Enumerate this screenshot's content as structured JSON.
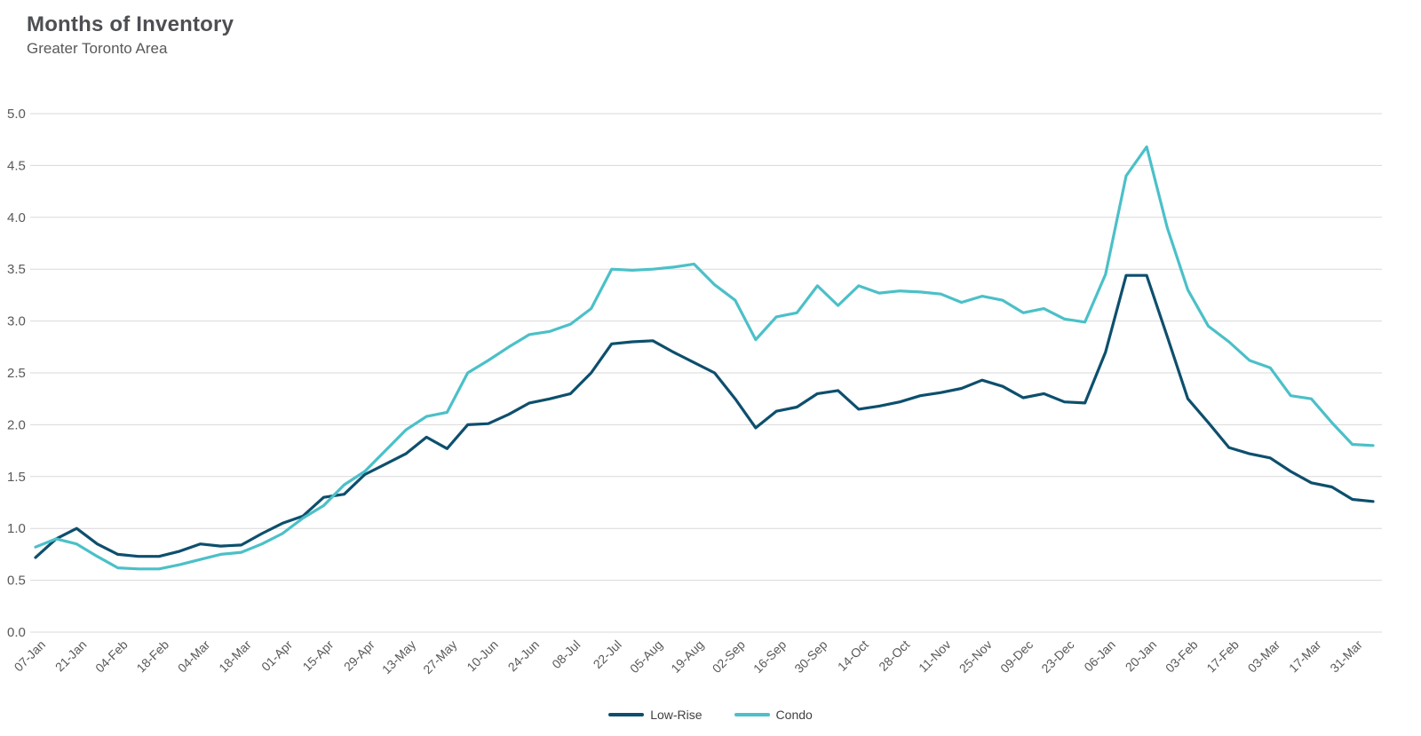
{
  "header": {
    "title": "Months of Inventory",
    "subtitle": "Greater Toronto Area"
  },
  "chart_data": {
    "type": "line",
    "title": "Months of Inventory",
    "subtitle": "Greater Toronto Area",
    "grid": "horizontal",
    "legend_position": "bottom-center",
    "ylim": [
      0,
      5
    ],
    "ytick_step": 0.5,
    "y_tick_labels": [
      "0.0",
      "0.5",
      "1.0",
      "1.5",
      "2.0",
      "2.5",
      "3.0",
      "3.5",
      "4.0",
      "4.5",
      "5.0"
    ],
    "label_every": 2,
    "x_labels": [
      "07-Jan",
      "21-Jan",
      "04-Feb",
      "18-Feb",
      "04-Mar",
      "18-Mar",
      "01-Apr",
      "15-Apr",
      "29-Apr",
      "13-May",
      "27-May",
      "10-Jun",
      "24-Jun",
      "08-Jul",
      "22-Jul",
      "05-Aug",
      "19-Aug",
      "02-Sep",
      "16-Sep",
      "30-Sep",
      "14-Oct",
      "28-Oct",
      "11-Nov",
      "25-Nov",
      "09-Dec",
      "23-Dec",
      "06-Jan",
      "20-Jan",
      "03-Feb",
      "17-Feb",
      "03-Mar",
      "17-Mar",
      "31-Mar"
    ],
    "colors": {
      "grid": "#d9d9d9",
      "axis_text": "#595959",
      "legend_text": "#404040"
    },
    "series": [
      {
        "name": "Low-Rise",
        "color": "#0d4f6d",
        "values": [
          0.72,
          0.9,
          1.0,
          0.85,
          0.75,
          0.73,
          0.73,
          0.78,
          0.85,
          0.83,
          0.84,
          0.95,
          1.05,
          1.12,
          1.3,
          1.33,
          1.52,
          1.62,
          1.72,
          1.88,
          1.77,
          2.0,
          2.01,
          2.1,
          2.21,
          2.25,
          2.3,
          2.5,
          2.78,
          2.8,
          2.81,
          2.7,
          2.6,
          2.5,
          2.25,
          1.97,
          2.13,
          2.17,
          2.3,
          2.33,
          2.15,
          2.18,
          2.22,
          2.28,
          2.31,
          2.35,
          2.43,
          2.37,
          2.26,
          2.3,
          2.22,
          2.21,
          2.7,
          3.44,
          3.44,
          2.85,
          2.25,
          2.02,
          1.78,
          1.72,
          1.68,
          1.55,
          1.44,
          1.4,
          1.28,
          1.26
        ]
      },
      {
        "name": "Condo",
        "color": "#4bc0c8",
        "values": [
          0.82,
          0.9,
          0.85,
          0.73,
          0.62,
          0.61,
          0.61,
          0.65,
          0.7,
          0.75,
          0.77,
          0.85,
          0.95,
          1.1,
          1.22,
          1.42,
          1.55,
          1.75,
          1.95,
          2.08,
          2.12,
          2.5,
          2.62,
          2.75,
          2.87,
          2.9,
          2.97,
          3.12,
          3.5,
          3.49,
          3.5,
          3.52,
          3.55,
          3.35,
          3.2,
          2.82,
          3.04,
          3.08,
          3.34,
          3.15,
          3.34,
          3.27,
          3.29,
          3.28,
          3.26,
          3.18,
          3.24,
          3.2,
          3.08,
          3.12,
          3.02,
          2.99,
          3.45,
          4.4,
          4.68,
          3.9,
          3.3,
          2.95,
          2.8,
          2.62,
          2.55,
          2.28,
          2.25,
          2.02,
          1.81,
          1.8
        ]
      }
    ]
  },
  "legend": {
    "items": [
      {
        "label": "Low-Rise"
      },
      {
        "label": "Condo"
      }
    ]
  }
}
